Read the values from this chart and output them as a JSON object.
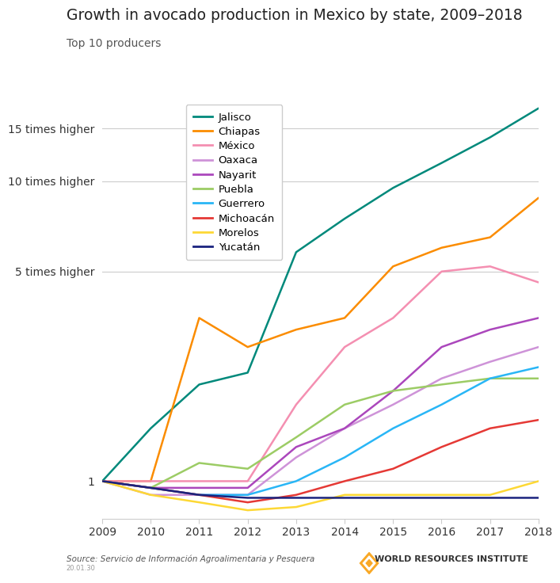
{
  "title": "Growth in avocado production in Mexico by state, 2009–2018",
  "subtitle": "Top 10 producers",
  "years": [
    2009,
    2010,
    2011,
    2012,
    2013,
    2014,
    2015,
    2016,
    2017,
    2018
  ],
  "series": {
    "Jalisco": [
      1,
      1.5,
      2.1,
      2.3,
      5.8,
      7.5,
      9.5,
      11.5,
      14.0,
      17.5
    ],
    "Chiapas": [
      1,
      1.0,
      3.5,
      2.8,
      3.2,
      3.5,
      5.2,
      6.0,
      6.5,
      8.8
    ],
    "México": [
      1,
      1.0,
      1.0,
      1.0,
      1.8,
      2.8,
      3.5,
      5.0,
      5.2,
      4.6
    ],
    "Oaxaca": [
      1,
      0.9,
      0.9,
      0.9,
      1.2,
      1.5,
      1.8,
      2.2,
      2.5,
      2.8
    ],
    "Nayarit": [
      1,
      0.95,
      0.95,
      0.95,
      1.3,
      1.5,
      2.0,
      2.8,
      3.2,
      3.5
    ],
    "Puebla": [
      1,
      0.95,
      1.15,
      1.1,
      1.4,
      1.8,
      2.0,
      2.1,
      2.2,
      2.2
    ],
    "Guerrero": [
      1,
      0.95,
      0.9,
      0.9,
      1.0,
      1.2,
      1.5,
      1.8,
      2.2,
      2.4
    ],
    "Michoacán": [
      1,
      0.95,
      0.9,
      0.85,
      0.9,
      1.0,
      1.1,
      1.3,
      1.5,
      1.6
    ],
    "Morelos": [
      1,
      0.9,
      0.85,
      0.8,
      0.82,
      0.9,
      0.9,
      0.9,
      0.9,
      1.0
    ],
    "Yucatán": [
      1,
      0.95,
      0.9,
      0.88,
      0.88,
      0.88,
      0.88,
      0.88,
      0.88,
      0.88
    ]
  },
  "colors": {
    "Jalisco": "#00897B",
    "Chiapas": "#FB8C00",
    "México": "#F48FB1",
    "Oaxaca": "#CE93D8",
    "Nayarit": "#AB47BC",
    "Puebla": "#9CCC65",
    "Guerrero": "#29B6F6",
    "Michoacán": "#E53935",
    "Morelos": "#FDD835",
    "Yucatán": "#1A237E"
  },
  "yticks": [
    1,
    5,
    10,
    15
  ],
  "ytick_labels": [
    "1",
    "5 times higher",
    "10 times higher",
    "15 times higher"
  ],
  "source_text": "Source: Servicio de Información Agroalimentaria y Pesquera",
  "version_text": "20.01.30",
  "wri_text": "WORLD RESOURCES INSTITUTE",
  "bg_color": "#FFFFFF",
  "grid_color": "#CCCCCC"
}
